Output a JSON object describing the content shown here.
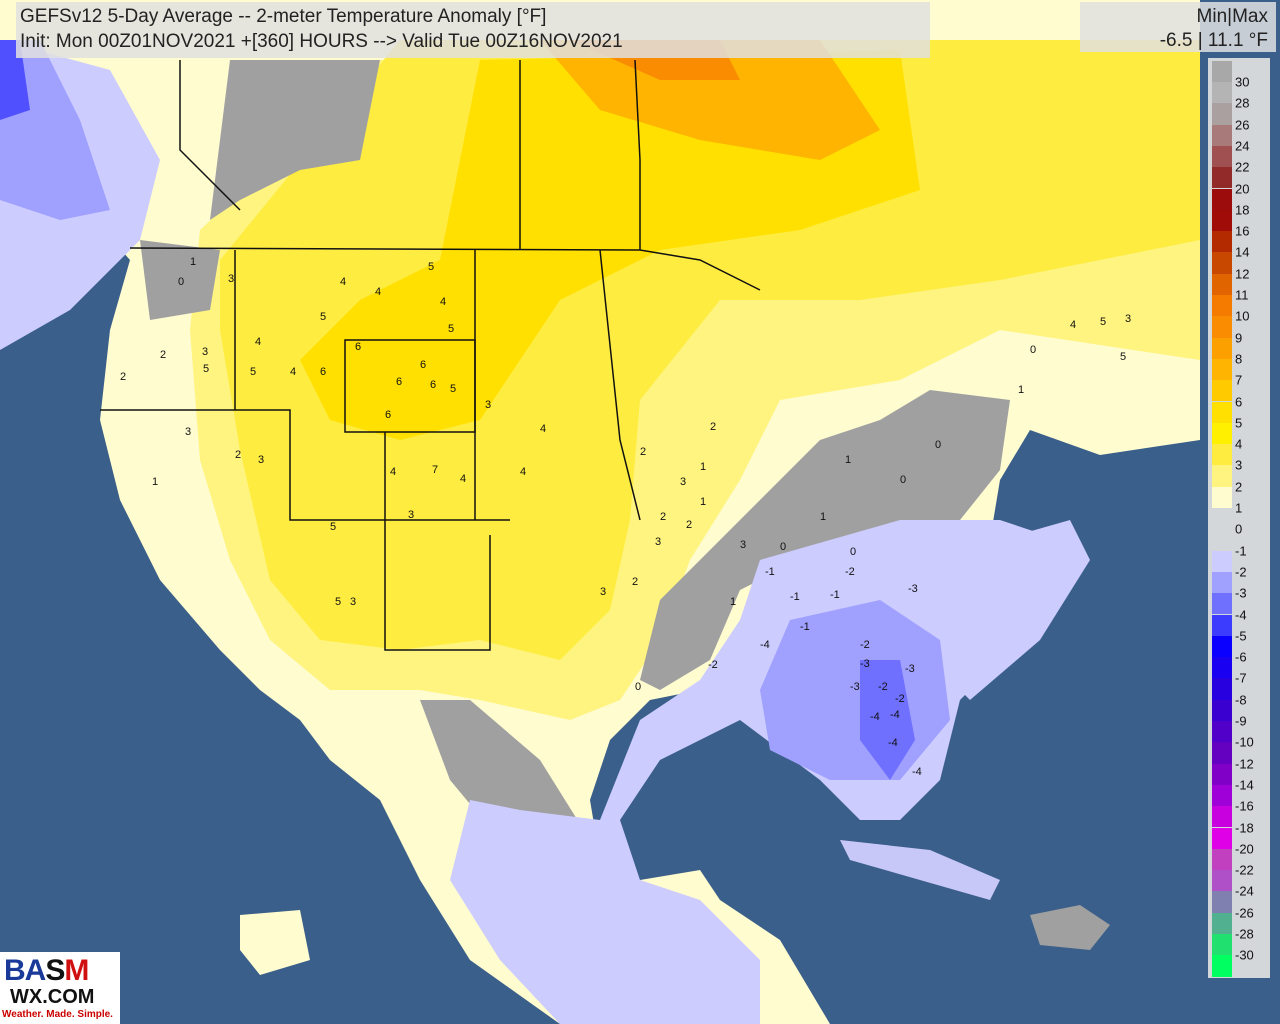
{
  "header": {
    "title": "GEFSv12 5-Day Average -- 2-meter Temperature Anomaly [°F]",
    "subtitle": "Init: Mon 00Z01NOV2021 +[360] HOURS --> Valid Tue 00Z16NOV2021",
    "minmax_label": "Min|Max",
    "minmax_value": "-6.5 | 11.1 °F"
  },
  "legend": [
    {
      "label": "30",
      "color": "#a8a8a8"
    },
    {
      "label": "28",
      "color": "#b4b4b4"
    },
    {
      "label": "26",
      "color": "#aaa0a0"
    },
    {
      "label": "24",
      "color": "#a87a7a"
    },
    {
      "label": "22",
      "color": "#a05050"
    },
    {
      "label": "20",
      "color": "#922a2a"
    },
    {
      "label": "18",
      "color": "#9c0c0c"
    },
    {
      "label": "16",
      "color": "#a00c08"
    },
    {
      "label": "14",
      "color": "#b42a00"
    },
    {
      "label": "12",
      "color": "#c84800"
    },
    {
      "label": "11",
      "color": "#e06400"
    },
    {
      "label": "10",
      "color": "#f57a00"
    },
    {
      "label": "9",
      "color": "#f98c00"
    },
    {
      "label": "8",
      "color": "#fca000"
    },
    {
      "label": "7",
      "color": "#feb400"
    },
    {
      "label": "6",
      "color": "#ffca00"
    },
    {
      "label": "5",
      "color": "#ffe000"
    },
    {
      "label": "4",
      "color": "#fff000"
    },
    {
      "label": "3",
      "color": "#ffec40"
    },
    {
      "label": "2",
      "color": "#fff480"
    },
    {
      "label": "1",
      "color": "#fffcd0"
    },
    {
      "label": "0",
      "color": "#d4d7da"
    },
    {
      "label": "-1",
      "color": "#ccccff"
    },
    {
      "label": "-2",
      "color": "#a0a0ff"
    },
    {
      "label": "-3",
      "color": "#7070ff"
    },
    {
      "label": "-4",
      "color": "#3c3cff"
    },
    {
      "label": "-5",
      "color": "#0a00ff"
    },
    {
      "label": "-6",
      "color": "#1a00f0"
    },
    {
      "label": "-7",
      "color": "#2800e0"
    },
    {
      "label": "-8",
      "color": "#3a00d0"
    },
    {
      "label": "-9",
      "color": "#5000c8"
    },
    {
      "label": "-10",
      "color": "#6400c0"
    },
    {
      "label": "-12",
      "color": "#8000c8"
    },
    {
      "label": "-14",
      "color": "#a000d8"
    },
    {
      "label": "-16",
      "color": "#c800e0"
    },
    {
      "label": "-18",
      "color": "#e000e8"
    },
    {
      "label": "-20",
      "color": "#c040c0"
    },
    {
      "label": "-22",
      "color": "#b050c8"
    },
    {
      "label": "-24",
      "color": "#8080b0"
    },
    {
      "label": "-26",
      "color": "#50b090"
    },
    {
      "label": "-28",
      "color": "#20e070"
    },
    {
      "label": "-30",
      "color": "#00ff60"
    }
  ],
  "stations": [
    "1",
    "0",
    "3",
    "2",
    "3",
    "4",
    "5",
    "6",
    "5",
    "4",
    "4",
    "5",
    "4",
    "5",
    "3",
    "2",
    "1",
    "2",
    "3",
    "5",
    "4",
    "6",
    "6",
    "6",
    "6",
    "5",
    "6",
    "7",
    "4",
    "3",
    "4",
    "5",
    "5",
    "3",
    "3",
    "4",
    "4",
    "3",
    "2",
    "3",
    "2",
    "1",
    "3",
    "2",
    "0",
    "1",
    "1",
    "0",
    "0",
    "1",
    "0",
    "-1",
    "-1",
    "-2",
    "-1",
    "-1",
    "-2",
    "-2",
    "-3",
    "-2",
    "-3",
    "-4",
    "-4",
    "-4",
    "-4",
    "-3",
    "-3",
    "-4",
    "-2",
    "0",
    "1",
    "2",
    "3",
    "2",
    "1",
    "0",
    "4",
    "5",
    "3",
    "5"
  ],
  "logo": {
    "text": "BAM",
    "domain": "WX.COM",
    "tagline": "Weather. Made. Simple."
  }
}
